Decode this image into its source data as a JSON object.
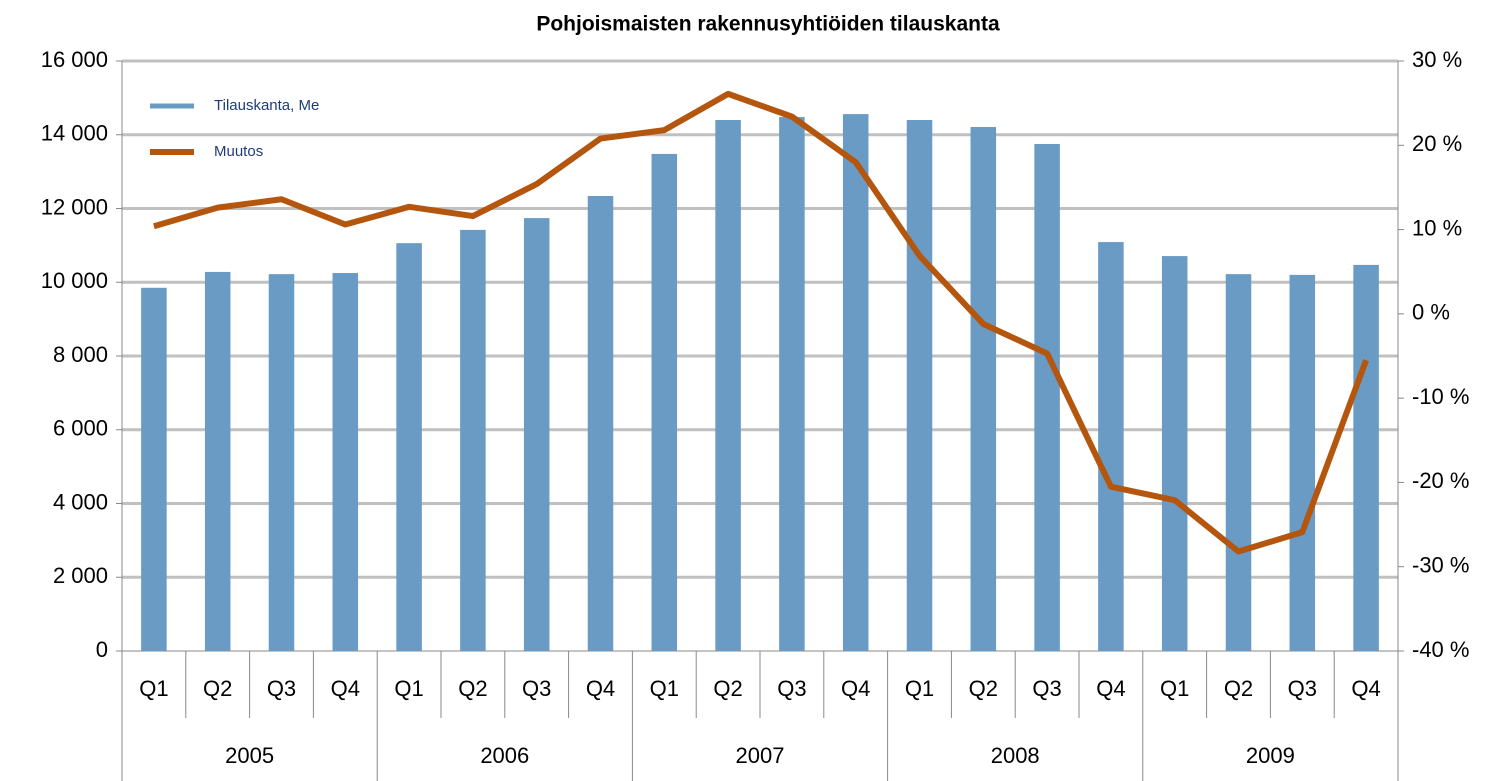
{
  "chart_data": {
    "type": "bar",
    "title": "Pohjoismaisten rakennusyhtiöiden tilauskanta",
    "categories": [
      "Q1",
      "Q2",
      "Q3",
      "Q4",
      "Q1",
      "Q2",
      "Q3",
      "Q4",
      "Q1",
      "Q2",
      "Q3",
      "Q4",
      "Q1",
      "Q2",
      "Q3",
      "Q4",
      "Q1",
      "Q2",
      "Q3",
      "Q4"
    ],
    "year_groups": [
      "2005",
      "2006",
      "2007",
      "2008",
      "2009"
    ],
    "series": [
      {
        "name": "Tilauskanta, Me",
        "type": "bar",
        "color": "#6a9bc4",
        "values": [
          9850,
          10280,
          10220,
          10250,
          11060,
          11420,
          11740,
          12340,
          13480,
          14400,
          14480,
          14560,
          14400,
          14210,
          13750,
          11090,
          10710,
          10220,
          10200,
          10470
        ]
      },
      {
        "name": "Muutos",
        "type": "line",
        "axis": "y2",
        "color": "#b5560f",
        "values": [
          10.4,
          12.6,
          13.6,
          10.6,
          12.7,
          11.6,
          15.4,
          20.8,
          21.8,
          26.1,
          23.4,
          18.0,
          6.9,
          -1.2,
          -4.7,
          -20.5,
          -22.1,
          -28.2,
          -25.9,
          -5.5
        ]
      }
    ],
    "ylim": [
      0,
      16000
    ],
    "yticks": [
      0,
      {
        "value": 2000,
        "label": "2 000"
      },
      {
        "value": 4000,
        "label": "4 000"
      },
      {
        "value": 6000,
        "label": "6 000"
      },
      {
        "value": 8000,
        "label": "8 000"
      },
      {
        "value": 10000,
        "label": "10 000"
      },
      {
        "value": 12000,
        "label": "12 000"
      },
      {
        "value": 14000,
        "label": "14 000"
      },
      {
        "value": 16000,
        "label": "16 000"
      }
    ],
    "y2lim": [
      -40,
      30
    ],
    "y2ticks": [
      {
        "value": -40,
        "label": "-40 %"
      },
      {
        "value": -30,
        "label": "-30 %"
      },
      {
        "value": -20,
        "label": "-20 %"
      },
      {
        "value": -10,
        "label": "-10 %"
      },
      {
        "value": 0,
        "label": "0 %"
      },
      {
        "value": 10,
        "label": "10 %"
      },
      {
        "value": 20,
        "label": "20 %"
      },
      {
        "value": 30,
        "label": "30 %"
      }
    ],
    "grid": true,
    "legend": "upper left"
  }
}
